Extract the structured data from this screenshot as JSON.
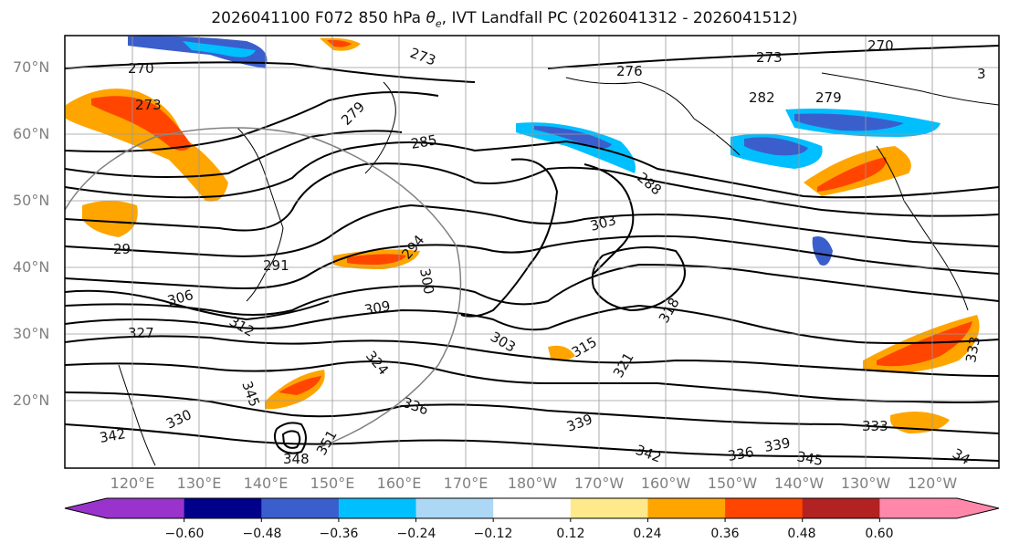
{
  "title": {
    "prefix": "2026041100 F072 850 hPa ",
    "theta": "θ",
    "sub": "e",
    "suffix": ", IVT Landfall PC (2026041312 - 2026041512)"
  },
  "map": {
    "lat_labels": [
      "70°N",
      "60°N",
      "50°N",
      "40°N",
      "30°N",
      "20°N"
    ],
    "lon_labels": [
      "120°E",
      "130°E",
      "140°E",
      "150°E",
      "160°E",
      "170°E",
      "180°W",
      "170°W",
      "160°W",
      "150°W",
      "140°W",
      "130°W",
      "120°W"
    ],
    "contour_labels": [
      "270",
      "273",
      "273",
      "276",
      "273",
      "270",
      "282",
      "279",
      "279",
      "285",
      "288",
      "291",
      "294",
      "300",
      "303",
      "303",
      "306",
      "309",
      "312",
      "315",
      "318",
      "321",
      "324",
      "327",
      "330",
      "333",
      "336",
      "339",
      "342",
      "336",
      "339",
      "345",
      "333",
      "34",
      "342",
      "345",
      "348",
      "351",
      "29",
      "3"
    ]
  },
  "colorbar": {
    "ticks": [
      "−0.60",
      "−0.48",
      "−0.36",
      "−0.24",
      "−0.12",
      "0.12",
      "0.24",
      "0.36",
      "0.48",
      "0.60"
    ],
    "colors": [
      "#9933cc",
      "#00008b",
      "#3a5fcd",
      "#00bfff",
      "#add8f5",
      "#ffffff",
      "#ffe98a",
      "#ffa500",
      "#ff4500",
      "#b22222",
      "#ff88aa"
    ],
    "levels": [
      -0.72,
      -0.6,
      -0.48,
      -0.36,
      -0.24,
      -0.12,
      0.12,
      0.24,
      0.36,
      0.48,
      0.6,
      0.72
    ]
  }
}
